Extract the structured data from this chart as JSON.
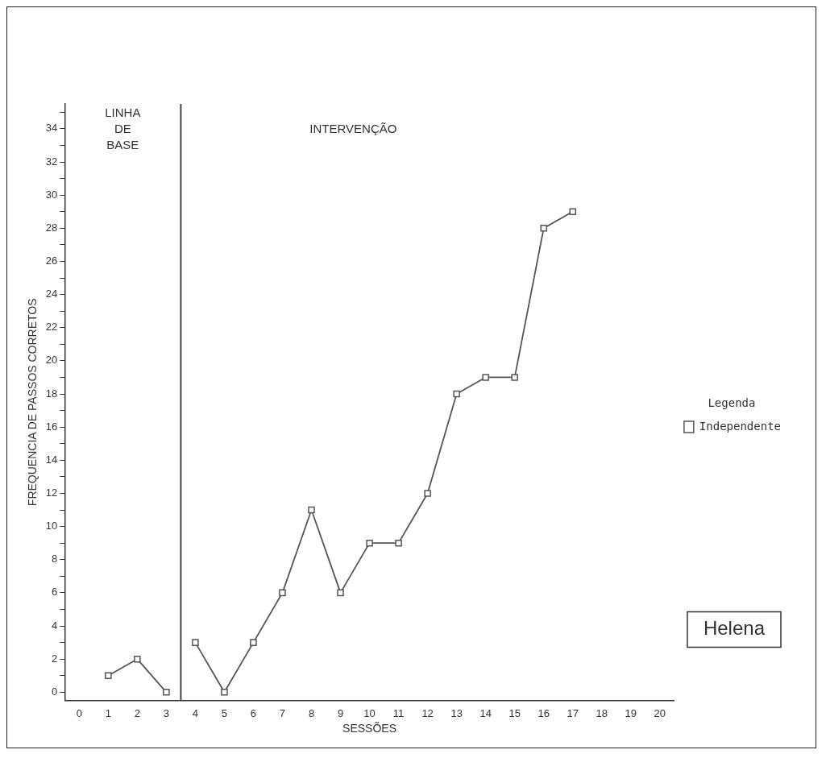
{
  "chart_data": {
    "type": "line",
    "xlabel": "SESSÕES",
    "ylabel": "FREQUENCIA DE PASSOS CORRETOS",
    "legend_title": "Legenda",
    "legend": "right",
    "marker": "square",
    "line_style": "solid",
    "grid": false,
    "xlim": [
      -0.5,
      20.5
    ],
    "xticks": [
      0,
      1,
      2,
      3,
      4,
      5,
      6,
      7,
      8,
      9,
      10,
      11,
      12,
      13,
      14,
      15,
      16,
      17,
      18,
      19,
      20
    ],
    "ylim": [
      -0.5,
      35.5
    ],
    "yticks": [
      0,
      {
        "value": 1,
        "label": null
      },
      2,
      {
        "value": 3,
        "label": null
      },
      4,
      {
        "value": 5,
        "label": null
      },
      6,
      {
        "value": 7,
        "label": null
      },
      8,
      {
        "value": 9,
        "label": null
      },
      10,
      {
        "value": 11,
        "label": null
      },
      12,
      {
        "value": 13,
        "label": null
      },
      14,
      {
        "value": 15,
        "label": null
      },
      16,
      {
        "value": 17,
        "label": null
      },
      18,
      {
        "value": 19,
        "label": null
      },
      20,
      {
        "value": 21,
        "label": null
      },
      22,
      {
        "value": 23,
        "label": null
      },
      24,
      {
        "value": 25,
        "label": null
      },
      26,
      {
        "value": 27,
        "label": null
      },
      28,
      {
        "value": 29,
        "label": null
      },
      30,
      {
        "value": 31,
        "label": null
      },
      32,
      {
        "value": 33,
        "label": null
      },
      34,
      {
        "value": 35,
        "label": null
      }
    ],
    "x": [
      1,
      2,
      3,
      3.5,
      4,
      5,
      6,
      7,
      8,
      9,
      10,
      11,
      12,
      13,
      14,
      15,
      16,
      17
    ],
    "series": [
      {
        "name": "Independente",
        "color": "#555555",
        "values": [
          1,
          2,
          0,
          null,
          3,
          0,
          3,
          6,
          11,
          6,
          9,
          9,
          12,
          18,
          19,
          19,
          28,
          29
        ]
      }
    ],
    "ref_lines": [
      {
        "axis": "x",
        "value": 3.5,
        "color": "#444444"
      }
    ],
    "annotations": [
      "LINHA DE BASE",
      "INTERVENÇÃO",
      "Helena"
    ]
  }
}
